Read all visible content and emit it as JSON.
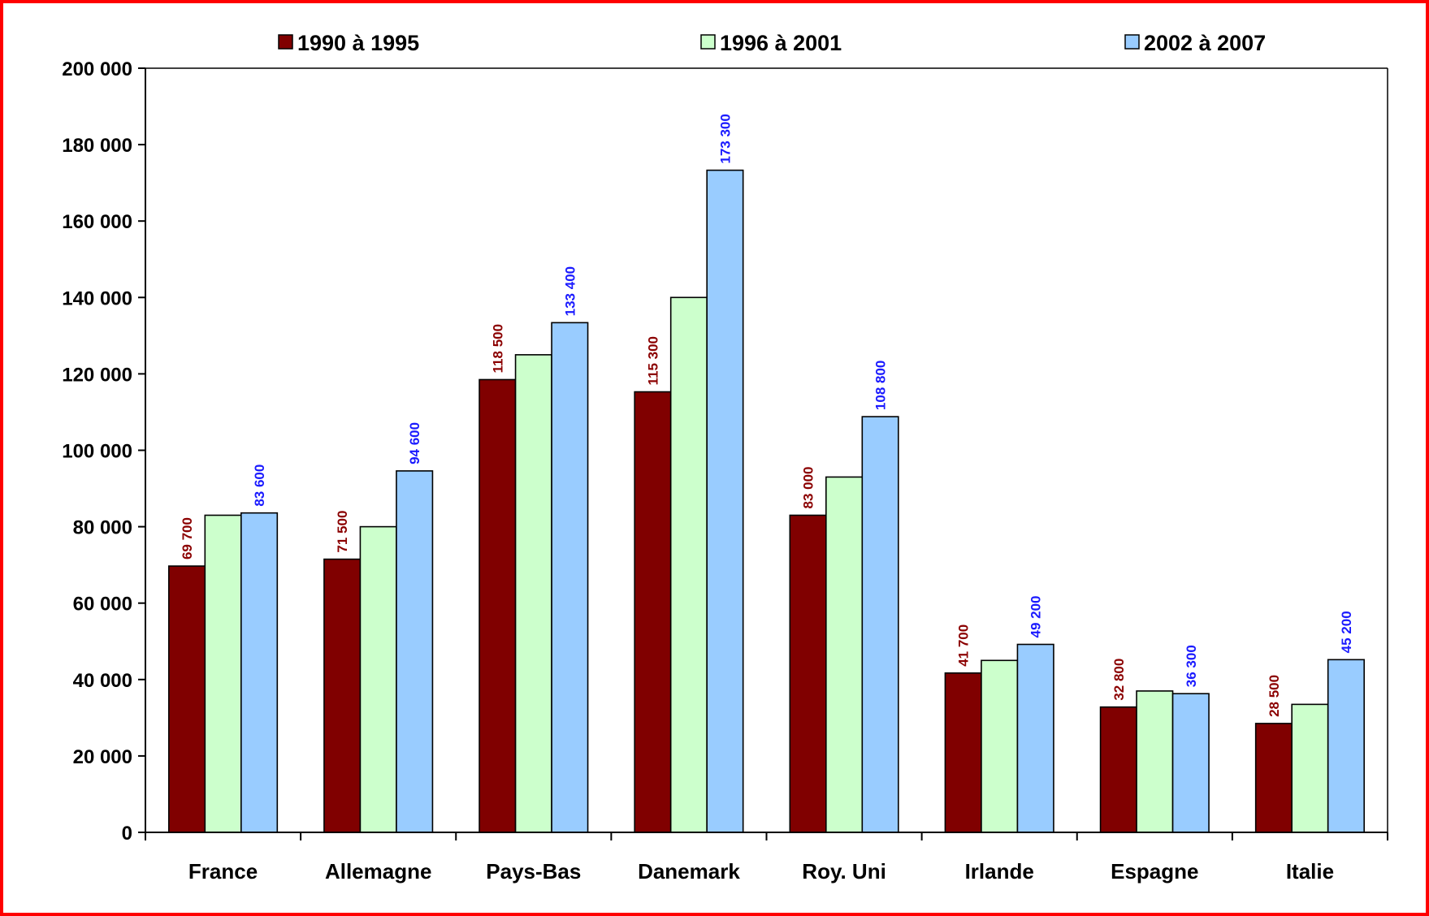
{
  "chart_data": {
    "type": "bar",
    "title": "",
    "xlabel": "",
    "ylabel": "",
    "ylim": [
      0,
      200000
    ],
    "y_ticks": [
      0,
      20000,
      40000,
      60000,
      80000,
      100000,
      120000,
      140000,
      160000,
      180000,
      200000
    ],
    "y_tick_labels": [
      "0",
      "20 000",
      "40 000",
      "60 000",
      "80 000",
      "100 000",
      "120 000",
      "140 000",
      "160 000",
      "180 000",
      "200 000"
    ],
    "categories": [
      "France",
      "Allemagne",
      "Pays-Bas",
      "Danemark",
      "Roy. Uni",
      "Irlande",
      "Espagne",
      "Italie"
    ],
    "grid": false,
    "legend_position": "top",
    "series": [
      {
        "name": "1990 à 1995",
        "color": "#800000",
        "label_color": "#8b0000",
        "values": [
          69700,
          71500,
          118500,
          115300,
          83000,
          41700,
          32800,
          28500
        ],
        "data_labels": [
          "69 700",
          "71 500",
          "118 500",
          "115 300",
          "83 000",
          "41 700",
          "32 800",
          "28 500"
        ]
      },
      {
        "name": "1996 à 2001",
        "color": "#ccffcc",
        "label_color": "#000000",
        "values": [
          83000,
          80000,
          125000,
          140000,
          93000,
          45000,
          37000,
          33500
        ],
        "data_labels": [
          "",
          "",
          "",
          "",
          "",
          "",
          "",
          ""
        ]
      },
      {
        "name": "2002 à 2007",
        "color": "#99ccff",
        "label_color": "#1a1aff",
        "values": [
          83600,
          94600,
          133400,
          173300,
          108800,
          49200,
          36300,
          45200
        ],
        "data_labels": [
          "83 600",
          "94 600",
          "133 400",
          "173 300",
          "108 800",
          "49 200",
          "36 300",
          "45 200"
        ]
      }
    ]
  }
}
